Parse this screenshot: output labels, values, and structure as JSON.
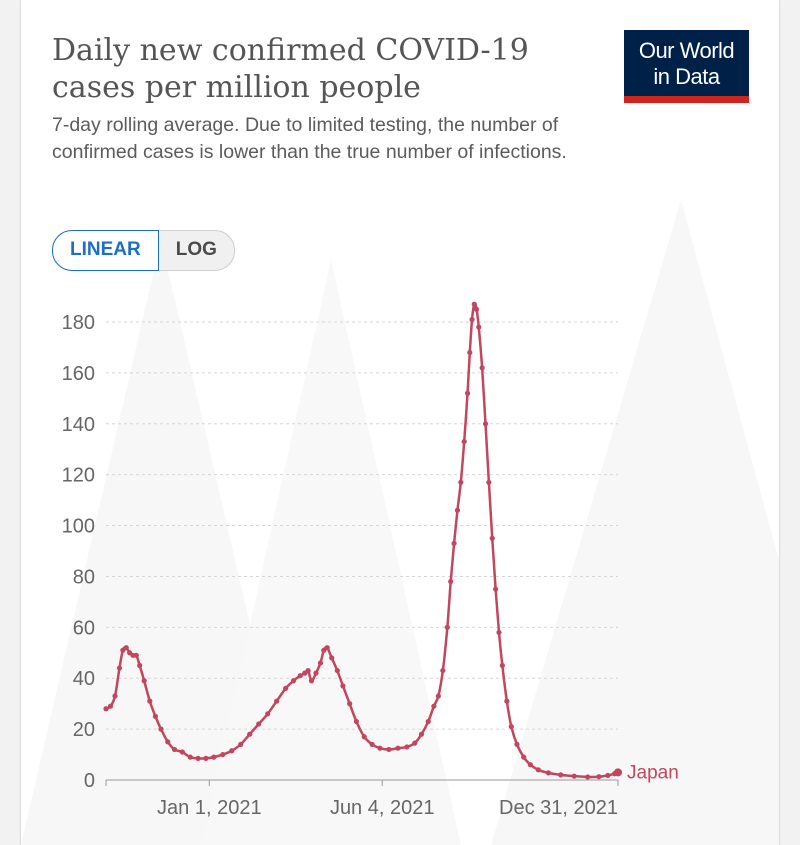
{
  "header": {
    "title": "Daily new confirmed COVID-19 cases per million people",
    "subtitle": "7-day rolling average. Due to limited testing, the number of confirmed cases is lower than the true number of infections."
  },
  "logo": {
    "line1": "Our World",
    "line2": "in Data",
    "bg": "#002147",
    "accent": "#ce261e"
  },
  "scale_toggle": {
    "linear_label": "LINEAR",
    "log_label": "LOG",
    "active": "LINEAR"
  },
  "colors": {
    "series": "#c1465e",
    "grid": "#d6d6d6",
    "axis_text": "#666666"
  },
  "chart_data": {
    "type": "line",
    "title": "Daily new confirmed COVID-19 cases per million people",
    "ylim": [
      0,
      180
    ],
    "yticks": [
      0,
      20,
      40,
      60,
      80,
      100,
      120,
      140,
      160,
      180
    ],
    "grid": "horizontal dashed",
    "xtick_labels": [
      "Jan 1, 2021",
      "Jun 4, 2021",
      "Dec 31, 2021"
    ],
    "series": [
      {
        "name": "Japan",
        "color": "#c1465e",
        "points": [
          [
            "2020-10-01",
            28
          ],
          [
            "2020-10-05",
            29
          ],
          [
            "2020-10-09",
            33
          ],
          [
            "2020-10-13",
            44
          ],
          [
            "2020-10-16",
            51
          ],
          [
            "2020-10-19",
            52
          ],
          [
            "2020-10-22",
            50
          ],
          [
            "2020-10-25",
            49
          ],
          [
            "2020-10-28",
            49
          ],
          [
            "2020-10-31",
            45
          ],
          [
            "2020-11-04",
            39
          ],
          [
            "2020-11-09",
            31
          ],
          [
            "2020-11-14",
            25
          ],
          [
            "2020-11-19",
            20
          ],
          [
            "2020-11-25",
            15
          ],
          [
            "2020-12-01",
            12
          ],
          [
            "2020-12-08",
            11
          ],
          [
            "2020-12-15",
            9
          ],
          [
            "2020-12-22",
            8.5
          ],
          [
            "2020-12-29",
            8.5
          ],
          [
            "2021-01-05",
            9
          ],
          [
            "2021-01-13",
            10
          ],
          [
            "2021-01-21",
            11.5
          ],
          [
            "2021-01-29",
            14
          ],
          [
            "2021-02-06",
            18
          ],
          [
            "2021-02-14",
            22
          ],
          [
            "2021-02-22",
            26
          ],
          [
            "2021-03-02",
            31
          ],
          [
            "2021-03-10",
            36
          ],
          [
            "2021-03-17",
            39
          ],
          [
            "2021-03-23",
            41
          ],
          [
            "2021-03-27",
            42
          ],
          [
            "2021-03-30",
            43
          ],
          [
            "2021-04-02",
            39
          ],
          [
            "2021-04-06",
            42
          ],
          [
            "2021-04-10",
            46
          ],
          [
            "2021-04-13",
            51
          ],
          [
            "2021-04-16",
            52
          ],
          [
            "2021-04-20",
            48
          ],
          [
            "2021-04-25",
            43
          ],
          [
            "2021-04-30",
            37
          ],
          [
            "2021-05-06",
            30
          ],
          [
            "2021-05-12",
            23
          ],
          [
            "2021-05-19",
            17
          ],
          [
            "2021-05-26",
            14
          ],
          [
            "2021-06-02",
            12.5
          ],
          [
            "2021-06-10",
            12
          ],
          [
            "2021-06-18",
            12.5
          ],
          [
            "2021-06-26",
            13
          ],
          [
            "2021-07-03",
            14.5
          ],
          [
            "2021-07-09",
            18
          ],
          [
            "2021-07-15",
            23
          ],
          [
            "2021-07-20",
            29
          ],
          [
            "2021-07-24",
            33
          ],
          [
            "2021-07-28",
            43
          ],
          [
            "2021-08-01",
            60
          ],
          [
            "2021-08-04",
            78
          ],
          [
            "2021-08-07",
            93
          ],
          [
            "2021-08-10",
            106
          ],
          [
            "2021-08-13",
            117
          ],
          [
            "2021-08-16",
            133
          ],
          [
            "2021-08-19",
            152
          ],
          [
            "2021-08-21",
            168
          ],
          [
            "2021-08-23",
            181
          ],
          [
            "2021-08-25",
            187
          ],
          [
            "2021-08-27",
            185
          ],
          [
            "2021-08-29",
            178
          ],
          [
            "2021-09-01",
            162
          ],
          [
            "2021-09-04",
            140
          ],
          [
            "2021-09-07",
            117
          ],
          [
            "2021-09-10",
            95
          ],
          [
            "2021-09-13",
            75
          ],
          [
            "2021-09-16",
            58
          ],
          [
            "2021-09-19",
            45
          ],
          [
            "2021-09-23",
            31
          ],
          [
            "2021-09-27",
            21
          ],
          [
            "2021-10-02",
            14
          ],
          [
            "2021-10-08",
            9
          ],
          [
            "2021-10-14",
            6
          ],
          [
            "2021-10-21",
            4
          ],
          [
            "2021-10-30",
            2.8
          ],
          [
            "2021-11-10",
            2
          ],
          [
            "2021-11-22",
            1.5
          ],
          [
            "2021-12-04",
            1.2
          ],
          [
            "2021-12-14",
            1.3
          ],
          [
            "2021-12-22",
            1.8
          ],
          [
            "2021-12-28",
            2.5
          ],
          [
            "2021-12-31",
            3
          ]
        ]
      }
    ],
    "end_label": "Japan"
  }
}
